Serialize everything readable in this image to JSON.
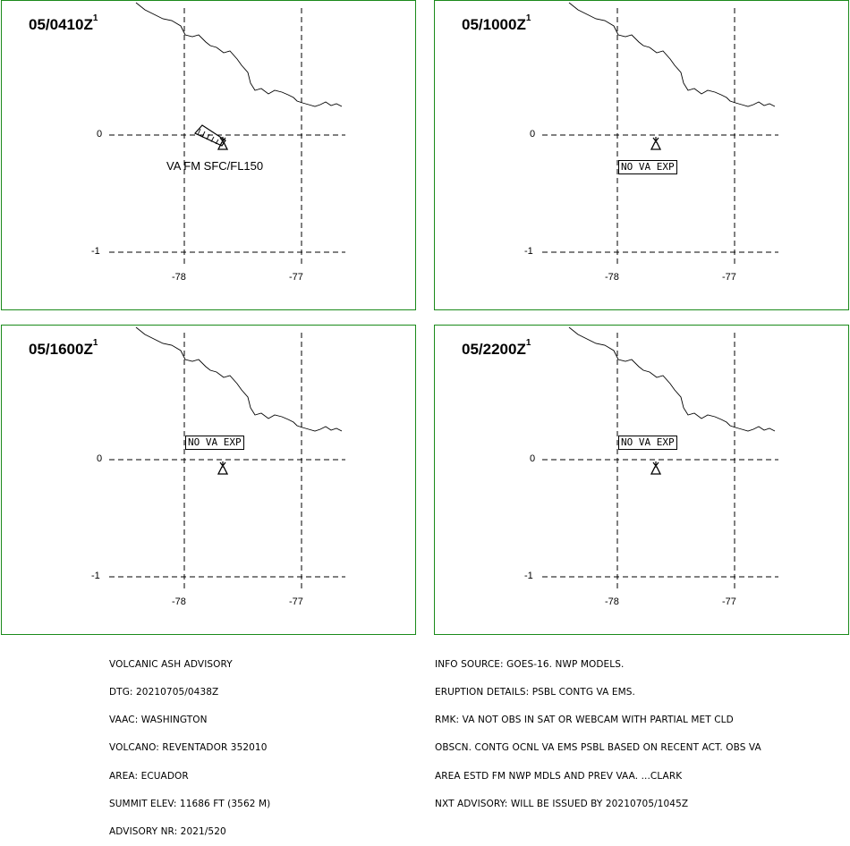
{
  "panels": [
    {
      "title": "05/0410Z",
      "sup": "1",
      "label": "VA FM SFC/FL150",
      "boxed": false,
      "plume": true
    },
    {
      "title": "05/1000Z",
      "sup": "1",
      "label": "NO VA EXP",
      "boxed": true,
      "plume": false
    },
    {
      "title": "05/1600Z",
      "sup": "1",
      "label": "NO VA EXP",
      "boxed": true,
      "plume": false
    },
    {
      "title": "05/2200Z",
      "sup": "1",
      "label": "NO VA EXP",
      "boxed": true,
      "plume": false
    }
  ],
  "axes": {
    "lat_ticks": [
      "0",
      "-1"
    ],
    "lon_ticks": [
      "-78",
      "-77"
    ]
  },
  "advisory_left": [
    "VOLCANIC ASH ADVISORY",
    "DTG: 20210705/0438Z",
    "VAAC: WASHINGTON",
    "VOLCANO: REVENTADOR 352010",
    "AREA: ECUADOR",
    "SUMMIT ELEV: 11686 FT (3562 M)",
    "ADVISORY NR: 2021/520"
  ],
  "advisory_right": [
    "INFO SOURCE: GOES-16. NWP MODELS.",
    "ERUPTION DETAILS: PSBL CONTG VA EMS.",
    "RMK: VA NOT OBS IN SAT OR WEBCAM WITH PARTIAL MET CLD",
    "OBSCN. CONTG OCNL VA EMS PSBL BASED ON RECENT ACT. OBS VA",
    "AREA ESTD FM NWP MDLS AND PREV VAA. ...CLARK",
    "NXT ADVISORY: WILL BE ISSUED BY 20210705/1045Z"
  ],
  "colors": {
    "panel_border": "#1a8a1a",
    "lines": "#000000"
  }
}
